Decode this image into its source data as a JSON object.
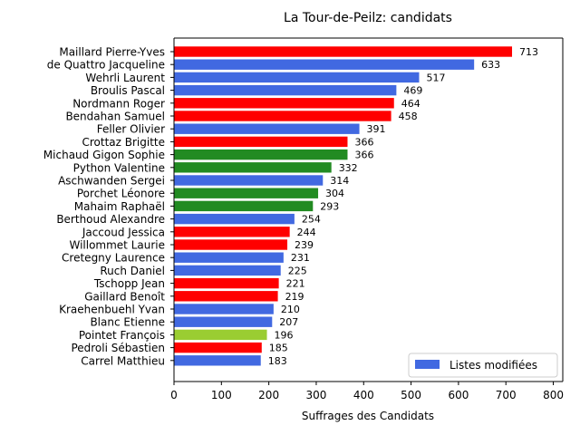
{
  "chart_data": {
    "type": "bar",
    "orientation": "horizontal",
    "title": "La Tour-de-Peilz: candidats",
    "xlabel": "Suffrages des Candidats",
    "ylabel": "",
    "xlim": [
      0,
      820
    ],
    "xticks": [
      "0",
      "100",
      "200",
      "300",
      "400",
      "500",
      "600",
      "700",
      "800"
    ],
    "grid": false,
    "legend": {
      "position": "bottom-right",
      "entries": [
        {
          "label": "Listes modifiées",
          "color": "#4169E1"
        }
      ]
    },
    "colors": {
      "red": "#FF0000",
      "blue": "#4169E1",
      "green": "#228B22",
      "lightgreen": "#9ACD32"
    },
    "categories": [
      "Maillard Pierre-Yves",
      "de Quattro Jacqueline",
      "Wehrli Laurent",
      "Broulis Pascal",
      "Nordmann Roger",
      "Bendahan Samuel",
      "Feller Olivier",
      "Crottaz Brigitte",
      "Michaud Gigon Sophie",
      "Python Valentine",
      "Aschwanden Sergei",
      "Porchet Léonore",
      "Mahaim Raphaël",
      "Berthoud Alexandre",
      "Jaccoud Jessica",
      "Willommet Laurie",
      "Cretegny Laurence",
      "Ruch Daniel",
      "Tschopp Jean",
      "Gaillard Benoît",
      "Kraehenbuehl Yvan",
      "Blanc Etienne",
      "Pointet François",
      "Pedroli Sébastien",
      "Carrel Matthieu"
    ],
    "values": [
      713,
      633,
      517,
      469,
      464,
      458,
      391,
      366,
      366,
      332,
      314,
      304,
      293,
      254,
      244,
      239,
      231,
      225,
      221,
      219,
      210,
      207,
      196,
      185,
      183
    ],
    "bar_colors": [
      "red",
      "blue",
      "blue",
      "blue",
      "red",
      "red",
      "blue",
      "red",
      "green",
      "green",
      "blue",
      "green",
      "green",
      "blue",
      "red",
      "red",
      "blue",
      "blue",
      "red",
      "red",
      "blue",
      "blue",
      "lightgreen",
      "red",
      "blue"
    ]
  }
}
